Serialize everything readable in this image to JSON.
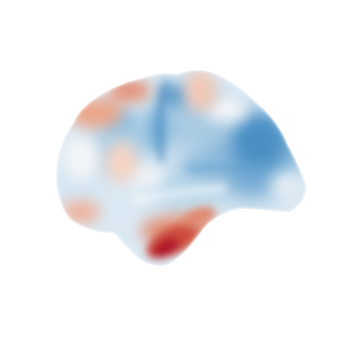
{
  "scene": {
    "subject": "cortical-surface-brain",
    "view": "lateral",
    "background_color": "#ffffff",
    "colormap": {
      "name": "RdBu_r",
      "negative_extreme": "#2166ac",
      "negative_mid": "#4393c3",
      "negative_light": "#92c5de",
      "neutral": "#f7f7f7",
      "positive_light": "#f4a582",
      "positive_mid": "#d6604d",
      "positive_extreme": "#b2182b"
    }
  }
}
